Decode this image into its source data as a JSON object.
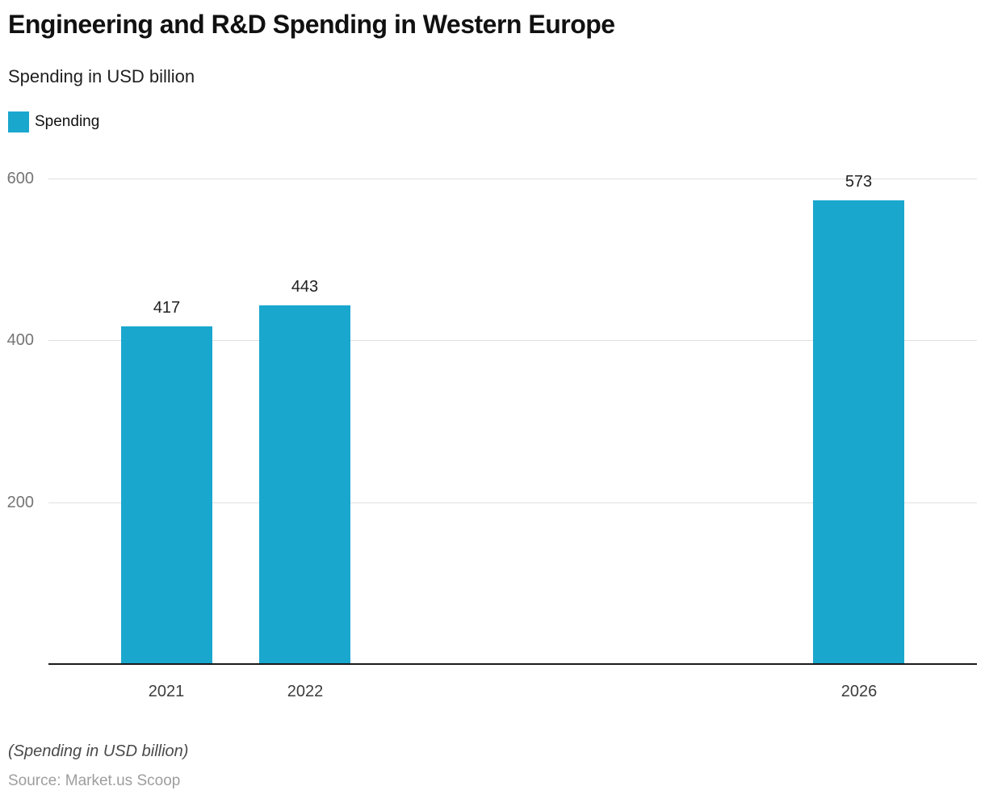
{
  "header": {
    "title": "Engineering and R&D Spending in Western Europe",
    "subtitle": "Spending in USD billion"
  },
  "legend": {
    "items": [
      {
        "label": "Spending",
        "color": "#1AA7CE"
      }
    ]
  },
  "chart_data": {
    "type": "bar",
    "title": "Engineering and R&D Spending in Western Europe",
    "subtitle": "Spending in USD billion",
    "categories": [
      "2021",
      "2022",
      "2026"
    ],
    "x_numeric": [
      2021,
      2022,
      2026
    ],
    "series": [
      {
        "name": "Spending",
        "color": "#1AA7CE",
        "values": [
          417,
          443,
          573
        ]
      }
    ],
    "ylabel": "",
    "xlabel": "",
    "ylim": [
      0,
      600
    ],
    "yticks": [
      200,
      400,
      600
    ],
    "grid": true,
    "legend_position": "top-left",
    "value_labels_shown": true
  },
  "footer": {
    "note": "(Spending in USD billion)",
    "source": "Source: Market.us Scoop"
  }
}
